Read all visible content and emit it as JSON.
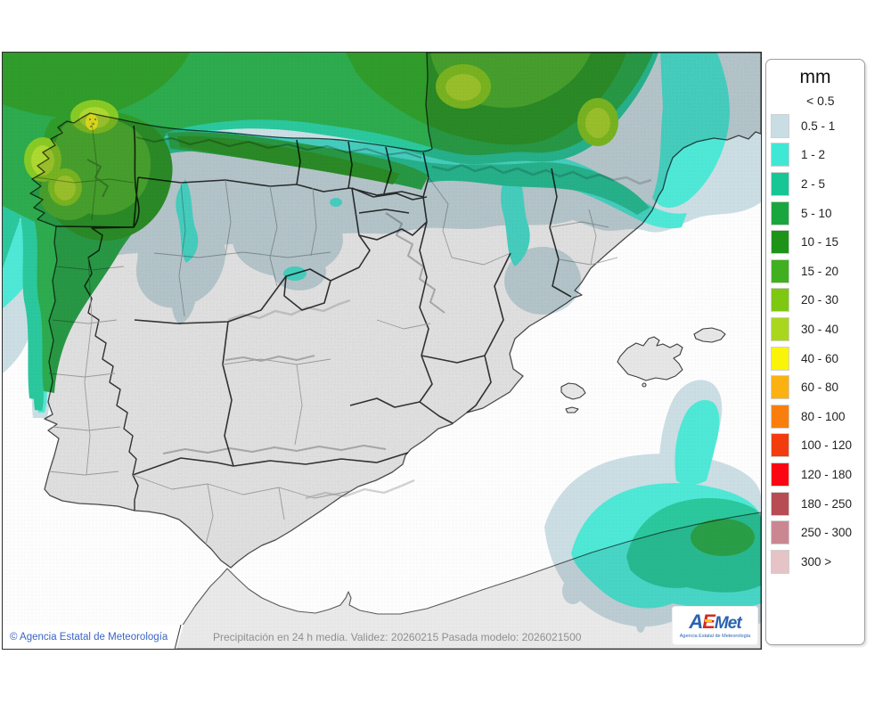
{
  "map": {
    "attribution": "© Agencia Estatal de Meteorología",
    "model_info": "Precipitación en 24 h media. Validez: 20260215 Pasada modelo: 2026021500"
  },
  "logo": {
    "part_a": "A",
    "part_e": "E",
    "part_met": "Met",
    "tagline": "Agencia Estatal de Meteorología"
  },
  "legend": {
    "title": "mm",
    "below_threshold_label": "< 0.5",
    "entries": [
      {
        "label": "0.5 - 1",
        "color": "#c9dde4"
      },
      {
        "label": "1 - 2",
        "color": "#3fe8d5"
      },
      {
        "label": "2 - 5",
        "color": "#17c695"
      },
      {
        "label": "5 - 10",
        "color": "#1aa63e"
      },
      {
        "label": "10 - 15",
        "color": "#1d9418"
      },
      {
        "label": "15 - 20",
        "color": "#40af20"
      },
      {
        "label": "20 - 30",
        "color": "#7ec811"
      },
      {
        "label": "30 - 40",
        "color": "#a8d71e"
      },
      {
        "label": "40 - 60",
        "color": "#faf30a"
      },
      {
        "label": "60 - 80",
        "color": "#fbb110"
      },
      {
        "label": "80 - 100",
        "color": "#fa7e0e"
      },
      {
        "label": "100 - 120",
        "color": "#f23c0e"
      },
      {
        "label": "120 - 180",
        "color": "#fa0511"
      },
      {
        "label": "180 - 250",
        "color": "#b74c52"
      },
      {
        "label": "250 - 300",
        "color": "#cb8791"
      },
      {
        "label": "300 >",
        "color": "#e5c3c7"
      }
    ]
  }
}
